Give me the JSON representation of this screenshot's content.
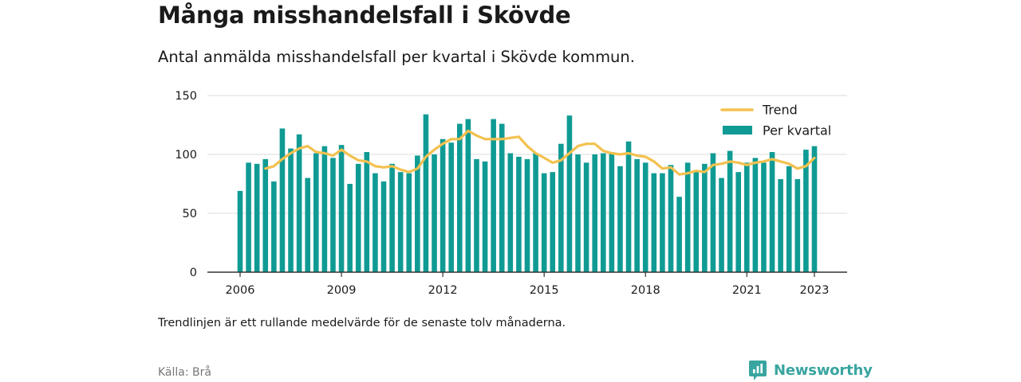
{
  "title": "Många misshandelsfall i Skövde",
  "subtitle": "Antal anmälda misshandelsfall per kvartal i Skövde kommun.",
  "note": "Trendlinjen är ett rullande medelvärde för de senaste tolv månaderna.",
  "source": "Källa: Brå",
  "brand": {
    "name": "Newsworthy",
    "icon": "newsworthy-logo-icon"
  },
  "colors": {
    "bars": "#0f9b94",
    "trend": "#f3c14f",
    "grid": "#dddddd",
    "axis": "#333333"
  },
  "chart_data": {
    "type": "bar",
    "x_start": "2006-Q1",
    "x_end": "2023-Q1",
    "xticks": [
      "2006",
      "2009",
      "2012",
      "2015",
      "2018",
      "2021",
      "2023"
    ],
    "yticks": [
      "0",
      "50",
      "100",
      "150"
    ],
    "ylim": [
      0,
      150
    ],
    "grid": true,
    "legend": {
      "position": "top-right",
      "entries": [
        "Trend",
        "Per kvartal"
      ]
    },
    "series": [
      {
        "name": "Per kvartal",
        "type": "bar",
        "values": [
          69,
          93,
          92,
          96,
          77,
          122,
          105,
          117,
          80,
          101,
          107,
          97,
          108,
          75,
          92,
          102,
          84,
          77,
          92,
          85,
          84,
          99,
          134,
          100,
          113,
          110,
          126,
          130,
          96,
          94,
          130,
          126,
          101,
          98,
          96,
          101,
          84,
          85,
          109,
          133,
          100,
          93,
          100,
          101,
          102,
          90,
          111,
          96,
          93,
          84,
          84,
          91,
          64,
          93,
          86,
          92,
          101,
          80,
          103,
          85,
          93,
          97,
          93,
          102,
          79,
          90,
          79,
          104,
          107
        ]
      },
      {
        "name": "Trend",
        "type": "line",
        "values": [
          null,
          null,
          null,
          88,
          90,
          96,
          101,
          105,
          107,
          102,
          101,
          99,
          104,
          99,
          95,
          94,
          90,
          89,
          90,
          87,
          85,
          88,
          98,
          104,
          109,
          113,
          113,
          120,
          116,
          113,
          113,
          113,
          114,
          115,
          107,
          101,
          97,
          93,
          95,
          101,
          107,
          109,
          109,
          103,
          101,
          100,
          101,
          99,
          98,
          94,
          88,
          89,
          83,
          84,
          86,
          85,
          91,
          92,
          94,
          93,
          91,
          93,
          94,
          96,
          94,
          92,
          88,
          90,
          97
        ]
      }
    ]
  }
}
